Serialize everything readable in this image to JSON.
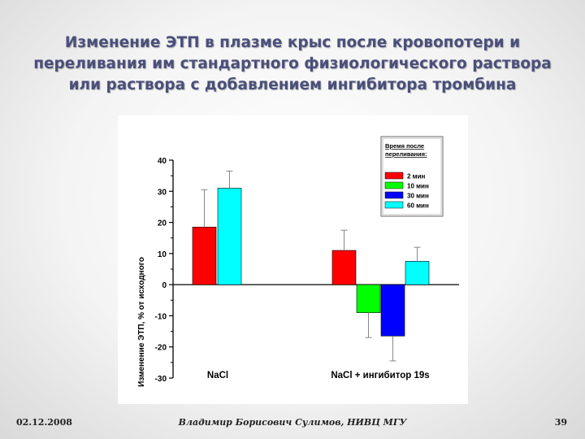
{
  "slide": {
    "title_lines": [
      "Изменение ЭТП в плазме крыс после кровопотери и",
      "переливания им стандартного физиологического раствора",
      "или раствора с добавлением ингибитора тромбина"
    ],
    "date": "02.12.2008",
    "author": "Владимир Борисович Сулимов, НИВЦ МГУ",
    "page_number": "39"
  },
  "chart_data": {
    "type": "bar",
    "ylabel": "Изменение ЭТП, % от исходного",
    "ylim": [
      -30,
      40
    ],
    "yticks": [
      -30,
      -20,
      -10,
      0,
      10,
      20,
      30,
      40
    ],
    "ytick_labels": [
      "-30",
      "-20",
      "-10",
      "0",
      "10",
      "20",
      "30",
      "40"
    ],
    "legend_title_lines": [
      "Время после",
      "переливания:"
    ],
    "legend_placement": "top-right",
    "grid": false,
    "categories": [
      "NaCl",
      "NaCl + ингибитор 19s"
    ],
    "series": [
      {
        "name": "2 мин",
        "color": "#ff0000",
        "values": [
          18.5,
          11
        ],
        "errors": [
          12,
          6.5
        ]
      },
      {
        "name": "10 мин",
        "color": "#00ff00",
        "values": [
          null,
          -9
        ],
        "errors": [
          null,
          8
        ]
      },
      {
        "name": "30 мин",
        "color": "#0000ff",
        "values": [
          null,
          -16.5
        ],
        "errors": [
          null,
          8
        ]
      },
      {
        "name": "60 мин",
        "color": "#00ffff",
        "values": [
          31,
          7.5
        ],
        "errors": [
          5.5,
          4.5
        ]
      }
    ]
  }
}
